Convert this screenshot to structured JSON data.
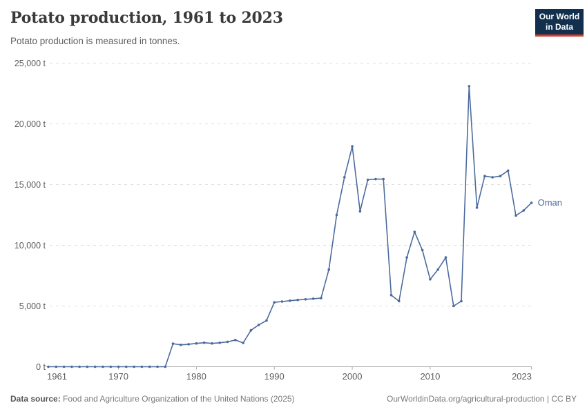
{
  "header": {
    "title": "Potato production, 1961 to 2023",
    "subtitle": "Potato production is measured in tonnes.",
    "logo": {
      "line1": "Our World",
      "line2": "in Data"
    }
  },
  "footer": {
    "source_label": "Data source:",
    "source_text": "Food and Agriculture Organization of the United Nations (2025)",
    "link_text": "OurWorldinData.org/agricultural-production | CC BY"
  },
  "colors": {
    "line": "#4c6a9e",
    "series_label": "#4c6a9e",
    "grid": "#dedede",
    "zero_line": "#ababab",
    "tick_text": "#5c5c5c",
    "logo_bg": "#12304e",
    "logo_red": "#dc3b2b"
  },
  "chart_data": {
    "type": "line",
    "title": "Potato production, 1961 to 2023",
    "unit": "tonnes",
    "grid": "horizontal-dashed",
    "legend_position": "end-of-line-label",
    "xlim": [
      1961,
      2023
    ],
    "ylim": [
      0,
      25000
    ],
    "yticks": [
      {
        "value": 0,
        "label": "0 t"
      },
      {
        "value": 5000,
        "label": "5,000 t"
      },
      {
        "value": 10000,
        "label": "10,000 t"
      },
      {
        "value": 15000,
        "label": "15,000 t"
      },
      {
        "value": 20000,
        "label": "20,000 t"
      },
      {
        "value": 25000,
        "label": "25,000 t"
      }
    ],
    "xticks": [
      {
        "value": 1961,
        "label": "1961"
      },
      {
        "value": 1970,
        "label": "1970"
      },
      {
        "value": 1980,
        "label": "1980"
      },
      {
        "value": 1990,
        "label": "1990"
      },
      {
        "value": 2000,
        "label": "2000"
      },
      {
        "value": 2010,
        "label": "2010"
      },
      {
        "value": 2023,
        "label": "2023"
      }
    ],
    "series": [
      {
        "name": "Oman",
        "color": "#4c6a9e",
        "x": [
          1961,
          1962,
          1963,
          1964,
          1965,
          1966,
          1967,
          1968,
          1969,
          1970,
          1971,
          1972,
          1973,
          1974,
          1975,
          1976,
          1977,
          1978,
          1979,
          1980,
          1981,
          1982,
          1983,
          1984,
          1985,
          1986,
          1987,
          1988,
          1989,
          1990,
          1991,
          1992,
          1993,
          1994,
          1995,
          1996,
          1997,
          1998,
          1999,
          2000,
          2001,
          2002,
          2003,
          2004,
          2005,
          2006,
          2007,
          2008,
          2009,
          2010,
          2011,
          2012,
          2013,
          2014,
          2015,
          2016,
          2017,
          2018,
          2019,
          2020,
          2021,
          2022,
          2023
        ],
        "values": [
          0,
          0,
          0,
          0,
          0,
          0,
          0,
          0,
          0,
          0,
          0,
          0,
          0,
          0,
          0,
          0,
          1900,
          1800,
          1850,
          1920,
          1980,
          1920,
          1970,
          2050,
          2200,
          1960,
          3000,
          3450,
          3800,
          5300,
          5370,
          5440,
          5500,
          5550,
          5600,
          5650,
          8000,
          12500,
          15600,
          18150,
          12800,
          15400,
          15450,
          15450,
          5900,
          5400,
          9000,
          11100,
          9600,
          7200,
          8000,
          9000,
          5000,
          5400,
          23100,
          13100,
          15700,
          15600,
          15700,
          16150,
          12450,
          12870,
          13500
        ]
      }
    ]
  }
}
